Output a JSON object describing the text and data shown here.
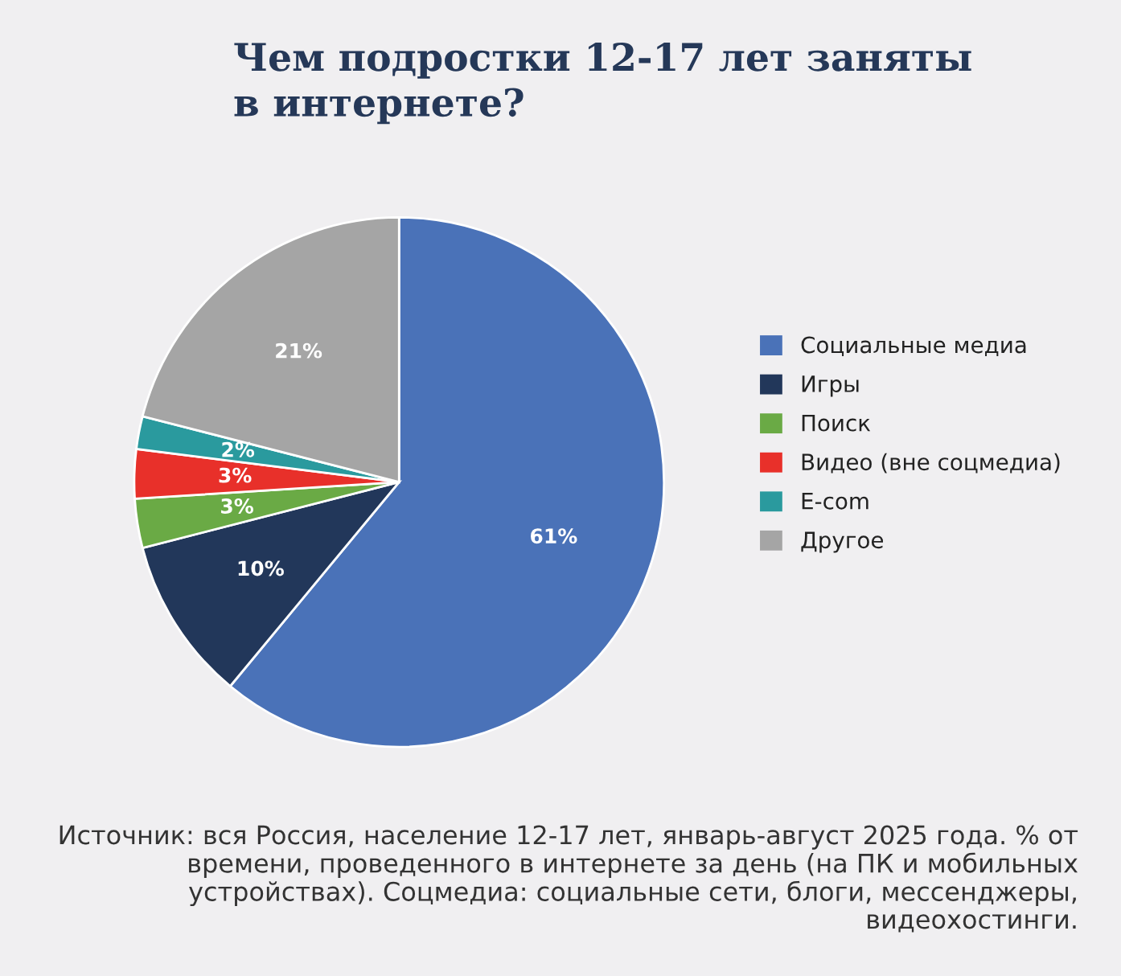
{
  "chart_data": {
    "type": "pie",
    "title": "Чем подростки 12-17 лет заняты\nв интернете?",
    "categories": [
      "Социальные медиа",
      "Игры",
      "Поиск",
      "Видео (вне соцмедиа)",
      "E-com",
      "Другое"
    ],
    "values": [
      61,
      10,
      3,
      3,
      2,
      21
    ],
    "colors": [
      "#4a72b8",
      "#22375a",
      "#6aaa45",
      "#e8302a",
      "#2a9a9e",
      "#a5a5a5"
    ],
    "value_labels": [
      "61%",
      "10%",
      "3%",
      "3%",
      "2%",
      "21%"
    ],
    "legend": "right",
    "annotations": [
      "Источник: вся Россия, население 12-17 лет, январь-август 2025 года. % от времени, проведенного в интернете за день (на ПК и мобильных устройствах). Соцмедиа: социальные сети, блоги, мессенджеры, видеохостинги."
    ]
  }
}
